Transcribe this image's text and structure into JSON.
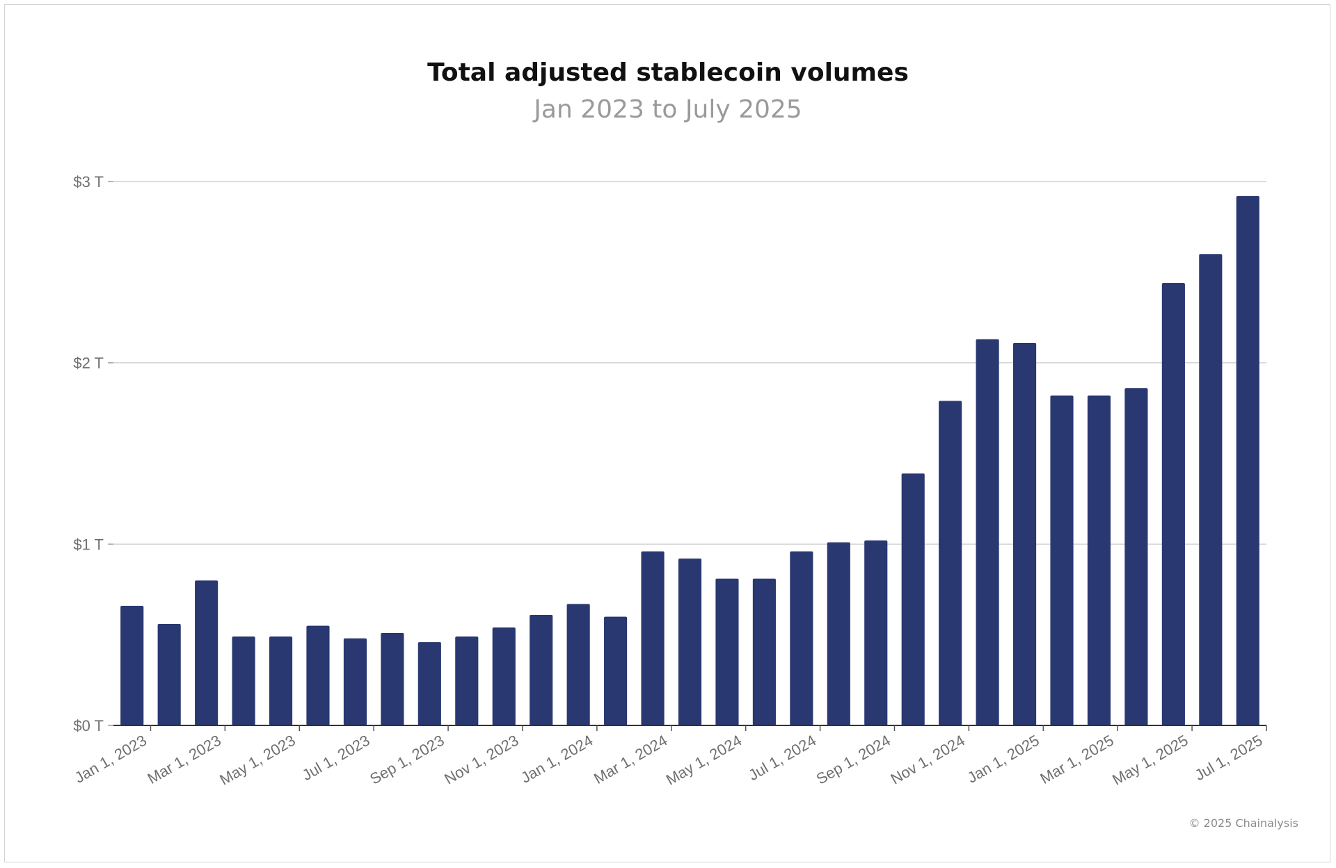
{
  "chart_data": {
    "type": "bar",
    "title": "Total adjusted stablecoin volumes",
    "subtitle": "Jan 2023 to July 2025",
    "xlabel": "",
    "ylabel": "",
    "ylim": [
      0,
      3
    ],
    "y_ticks": [
      {
        "value": 0,
        "label": "$0 T"
      },
      {
        "value": 1,
        "label": "$1 T"
      },
      {
        "value": 2,
        "label": "$2 T"
      },
      {
        "value": 3,
        "label": "$3 T"
      }
    ],
    "grid": true,
    "bar_color": "#293871",
    "categories": [
      "Jan 1, 2023",
      "Feb 1, 2023",
      "Mar 1, 2023",
      "Apr 1, 2023",
      "May 1, 2023",
      "Jun 1, 2023",
      "Jul 1, 2023",
      "Aug 1, 2023",
      "Sep 1, 2023",
      "Oct 1, 2023",
      "Nov 1, 2023",
      "Dec 1, 2023",
      "Jan 1, 2024",
      "Feb 1, 2024",
      "Mar 1, 2024",
      "Apr 1, 2024",
      "May 1, 2024",
      "Jun 1, 2024",
      "Jul 1, 2024",
      "Aug 1, 2024",
      "Sep 1, 2024",
      "Oct 1, 2024",
      "Nov 1, 2024",
      "Dec 1, 2024",
      "Jan 1, 2025",
      "Feb 1, 2025",
      "Mar 1, 2025",
      "Apr 1, 2025",
      "May 1, 2025",
      "Jun 1, 2025",
      "Jul 1, 2025"
    ],
    "x_tick_labels": [
      "Jan 1, 2023",
      "Mar 1, 2023",
      "May 1, 2023",
      "Jul 1, 2023",
      "Sep 1, 2023",
      "Nov 1, 2023",
      "Jan 1, 2024",
      "Mar 1, 2024",
      "May 1, 2024",
      "Jul 1, 2024",
      "Sep 1, 2024",
      "Nov 1, 2024",
      "Jan 1, 2025",
      "Mar 1, 2025",
      "May 1, 2025",
      "Jul 1, 2025"
    ],
    "values": [
      0.66,
      0.56,
      0.8,
      0.49,
      0.49,
      0.55,
      0.48,
      0.51,
      0.46,
      0.49,
      0.54,
      0.61,
      0.67,
      0.6,
      0.96,
      0.92,
      0.81,
      0.81,
      0.96,
      1.01,
      1.02,
      1.39,
      1.79,
      2.13,
      2.11,
      1.82,
      1.82,
      1.86,
      2.44,
      2.6,
      2.92
    ]
  },
  "footer": "© 2025 Chainalysis"
}
